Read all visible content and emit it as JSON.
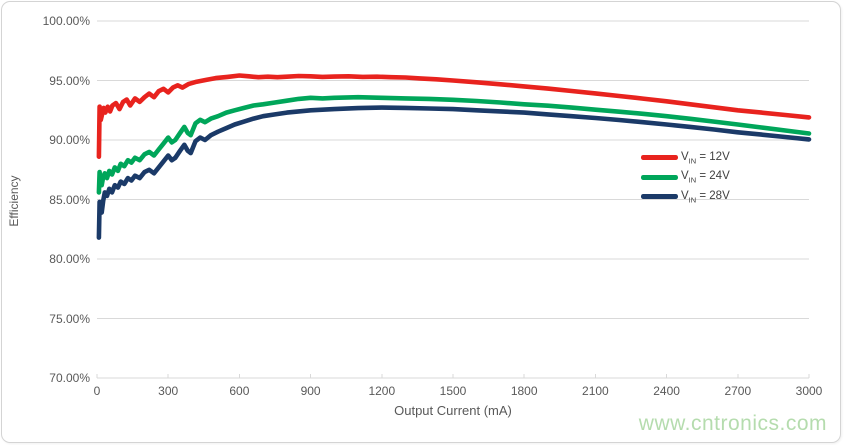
{
  "watermark": "www.cntronics.com",
  "colors": {
    "grid": "#d9d9d9",
    "axis_text": "#595959",
    "legend_text": "#404040",
    "watermark_green": "#b5dcae",
    "series_red": "#e8231e",
    "series_green": "#00a65a",
    "series_navy": "#1b3a68"
  },
  "chart_data": {
    "type": "line",
    "title": "",
    "xlabel": "Output Current (mA)",
    "ylabel": "Efficiency",
    "xlim": [
      0,
      3000
    ],
    "ylim": [
      70,
      100
    ],
    "x_ticks": [
      0,
      300,
      600,
      900,
      1200,
      1500,
      1800,
      2100,
      2400,
      2700,
      3000
    ],
    "y_ticks": [
      70,
      75,
      80,
      85,
      90,
      95,
      100
    ],
    "y_tick_labels": [
      "70.00%",
      "75.00%",
      "80.00%",
      "85.00%",
      "90.00%",
      "95.00%",
      "100.00%"
    ],
    "grid": "horizontal",
    "legend_position": "middle-right",
    "series": [
      {
        "name": "VIN = 12V",
        "legend": {
          "v": "V",
          "sub": "IN",
          "eq": " = 12V"
        },
        "color": "#e8231e",
        "points": [
          [
            8,
            88.6
          ],
          [
            11,
            92.8
          ],
          [
            16,
            91.7
          ],
          [
            22,
            92.2
          ],
          [
            28,
            92.7
          ],
          [
            35,
            92.3
          ],
          [
            45,
            92.8
          ],
          [
            55,
            92.4
          ],
          [
            65,
            92.9
          ],
          [
            80,
            93.1
          ],
          [
            95,
            92.6
          ],
          [
            110,
            93.2
          ],
          [
            125,
            93.4
          ],
          [
            140,
            92.9
          ],
          [
            160,
            93.5
          ],
          [
            180,
            93.2
          ],
          [
            200,
            93.6
          ],
          [
            220,
            93.9
          ],
          [
            240,
            93.6
          ],
          [
            260,
            94.1
          ],
          [
            280,
            94.3
          ],
          [
            300,
            94.0
          ],
          [
            320,
            94.4
          ],
          [
            340,
            94.6
          ],
          [
            360,
            94.4
          ],
          [
            385,
            94.7
          ],
          [
            420,
            94.9
          ],
          [
            460,
            95.05
          ],
          [
            500,
            95.2
          ],
          [
            550,
            95.3
          ],
          [
            600,
            95.42
          ],
          [
            640,
            95.35
          ],
          [
            680,
            95.28
          ],
          [
            720,
            95.32
          ],
          [
            760,
            95.28
          ],
          [
            800,
            95.32
          ],
          [
            850,
            95.38
          ],
          [
            900,
            95.35
          ],
          [
            950,
            95.3
          ],
          [
            1000,
            95.33
          ],
          [
            1060,
            95.35
          ],
          [
            1120,
            95.3
          ],
          [
            1180,
            95.32
          ],
          [
            1240,
            95.28
          ],
          [
            1300,
            95.25
          ],
          [
            1360,
            95.18
          ],
          [
            1430,
            95.1
          ],
          [
            1500,
            95.0
          ],
          [
            1600,
            94.85
          ],
          [
            1700,
            94.68
          ],
          [
            1800,
            94.5
          ],
          [
            1900,
            94.32
          ],
          [
            2000,
            94.12
          ],
          [
            2100,
            93.92
          ],
          [
            2200,
            93.7
          ],
          [
            2300,
            93.48
          ],
          [
            2400,
            93.25
          ],
          [
            2500,
            93.0
          ],
          [
            2600,
            92.75
          ],
          [
            2700,
            92.5
          ],
          [
            2800,
            92.3
          ],
          [
            2900,
            92.1
          ],
          [
            3000,
            91.9
          ]
        ]
      },
      {
        "name": "VIN = 24V",
        "legend": {
          "v": "V",
          "sub": "IN",
          "eq": " = 24V"
        },
        "color": "#00a65a",
        "points": [
          [
            8,
            85.6
          ],
          [
            11,
            87.3
          ],
          [
            15,
            86.5
          ],
          [
            20,
            86.2
          ],
          [
            26,
            86.9
          ],
          [
            33,
            87.2
          ],
          [
            42,
            86.8
          ],
          [
            52,
            87.4
          ],
          [
            63,
            87.1
          ],
          [
            75,
            87.7
          ],
          [
            88,
            87.4
          ],
          [
            100,
            88.0
          ],
          [
            115,
            87.8
          ],
          [
            130,
            88.3
          ],
          [
            145,
            88.1
          ],
          [
            160,
            88.5
          ],
          [
            180,
            88.3
          ],
          [
            200,
            88.8
          ],
          [
            220,
            89.0
          ],
          [
            240,
            88.7
          ],
          [
            260,
            89.2
          ],
          [
            280,
            89.7
          ],
          [
            300,
            90.2
          ],
          [
            315,
            89.8
          ],
          [
            330,
            90.0
          ],
          [
            350,
            90.6
          ],
          [
            368,
            91.1
          ],
          [
            382,
            90.6
          ],
          [
            395,
            90.4
          ],
          [
            415,
            91.4
          ],
          [
            435,
            91.7
          ],
          [
            455,
            91.5
          ],
          [
            480,
            91.8
          ],
          [
            510,
            92.0
          ],
          [
            545,
            92.3
          ],
          [
            580,
            92.5
          ],
          [
            620,
            92.7
          ],
          [
            660,
            92.9
          ],
          [
            700,
            93.0
          ],
          [
            750,
            93.15
          ],
          [
            800,
            93.3
          ],
          [
            850,
            93.45
          ],
          [
            900,
            93.55
          ],
          [
            950,
            93.5
          ],
          [
            1000,
            93.55
          ],
          [
            1100,
            93.6
          ],
          [
            1200,
            93.55
          ],
          [
            1300,
            93.5
          ],
          [
            1400,
            93.45
          ],
          [
            1500,
            93.38
          ],
          [
            1600,
            93.28
          ],
          [
            1700,
            93.15
          ],
          [
            1800,
            93.0
          ],
          [
            1900,
            92.88
          ],
          [
            2000,
            92.72
          ],
          [
            2100,
            92.55
          ],
          [
            2200,
            92.38
          ],
          [
            2300,
            92.2
          ],
          [
            2400,
            92.0
          ],
          [
            2500,
            91.78
          ],
          [
            2600,
            91.55
          ],
          [
            2700,
            91.3
          ],
          [
            2800,
            91.05
          ],
          [
            2900,
            90.8
          ],
          [
            3000,
            90.55
          ]
        ]
      },
      {
        "name": "VIN = 28V",
        "legend": {
          "v": "V",
          "sub": "IN",
          "eq": " = 28V"
        },
        "color": "#1b3a68",
        "points": [
          [
            8,
            81.8
          ],
          [
            11,
            84.8
          ],
          [
            15,
            84.2
          ],
          [
            20,
            83.9
          ],
          [
            26,
            84.9
          ],
          [
            33,
            85.6
          ],
          [
            42,
            85.3
          ],
          [
            52,
            85.9
          ],
          [
            63,
            85.6
          ],
          [
            75,
            86.2
          ],
          [
            88,
            86.0
          ],
          [
            100,
            86.5
          ],
          [
            115,
            86.3
          ],
          [
            130,
            86.8
          ],
          [
            145,
            86.6
          ],
          [
            160,
            87.0
          ],
          [
            180,
            86.8
          ],
          [
            200,
            87.3
          ],
          [
            220,
            87.5
          ],
          [
            240,
            87.2
          ],
          [
            260,
            87.7
          ],
          [
            280,
            88.2
          ],
          [
            300,
            88.7
          ],
          [
            315,
            88.3
          ],
          [
            330,
            88.5
          ],
          [
            350,
            89.1
          ],
          [
            368,
            89.6
          ],
          [
            382,
            89.1
          ],
          [
            395,
            88.9
          ],
          [
            415,
            89.9
          ],
          [
            435,
            90.2
          ],
          [
            455,
            90.0
          ],
          [
            480,
            90.4
          ],
          [
            510,
            90.7
          ],
          [
            545,
            91.0
          ],
          [
            580,
            91.3
          ],
          [
            620,
            91.55
          ],
          [
            660,
            91.8
          ],
          [
            700,
            92.0
          ],
          [
            750,
            92.15
          ],
          [
            800,
            92.3
          ],
          [
            850,
            92.4
          ],
          [
            900,
            92.5
          ],
          [
            1000,
            92.6
          ],
          [
            1100,
            92.68
          ],
          [
            1200,
            92.72
          ],
          [
            1300,
            92.7
          ],
          [
            1400,
            92.65
          ],
          [
            1500,
            92.6
          ],
          [
            1600,
            92.5
          ],
          [
            1700,
            92.4
          ],
          [
            1800,
            92.3
          ],
          [
            1900,
            92.15
          ],
          [
            2000,
            92.0
          ],
          [
            2100,
            91.85
          ],
          [
            2200,
            91.68
          ],
          [
            2300,
            91.5
          ],
          [
            2400,
            91.3
          ],
          [
            2500,
            91.1
          ],
          [
            2600,
            90.88
          ],
          [
            2700,
            90.65
          ],
          [
            2800,
            90.45
          ],
          [
            2900,
            90.25
          ],
          [
            3000,
            90.05
          ]
        ]
      }
    ]
  }
}
